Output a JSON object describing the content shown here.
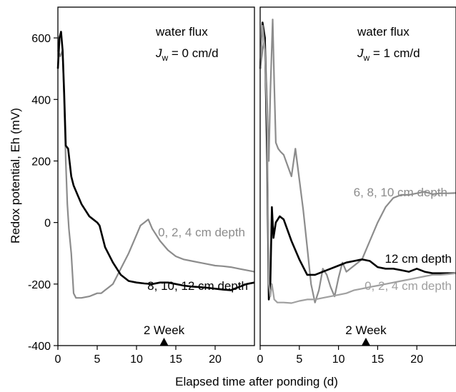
{
  "chart_data": [
    {
      "type": "line",
      "panel": "left",
      "annotation_line1": "water flux",
      "annotation_line2_italic": "J",
      "annotation_line2_sub": "w",
      "annotation_line2_rest": " = 0 cm/d",
      "xlabel": "Elapsed time after ponding (d)",
      "ylabel": "Redox potential, Eh (mV)",
      "xlim": [
        0,
        25
      ],
      "ylim": [
        -400,
        700
      ],
      "xticks": [
        "0",
        "5",
        "10",
        "15",
        "20"
      ],
      "yticks": [
        "600",
        "400",
        "200",
        "0",
        "-200",
        "-400"
      ],
      "marker_label": "2 Week",
      "marker_x": 13.5,
      "series": [
        {
          "name": "0, 2, 4 cm depth",
          "color": "#8c8c8c",
          "x": [
            0,
            0.3,
            0.6,
            0.9,
            1.0,
            1.2,
            1.4,
            1.7,
            2.0,
            2.3,
            3,
            4,
            5,
            5.5,
            6,
            6.5,
            7,
            8,
            9,
            10,
            10.5,
            11,
            11.5,
            12,
            13,
            14,
            15,
            16,
            17,
            18,
            19,
            20,
            21,
            22,
            23,
            24,
            25
          ],
          "y": [
            560,
            540,
            560,
            300,
            200,
            60,
            -20,
            -100,
            -230,
            -245,
            -245,
            -240,
            -230,
            -230,
            -220,
            -210,
            -200,
            -150,
            -100,
            -40,
            -10,
            0,
            10,
            -20,
            -60,
            -90,
            -110,
            -120,
            -125,
            -130,
            -135,
            -140,
            -142,
            -145,
            -150,
            -155,
            -160
          ]
        },
        {
          "name": "8, 10, 12 cm depth",
          "color": "#000000",
          "x": [
            0,
            0.2,
            0.4,
            0.6,
            0.8,
            1.0,
            1.3,
            1.7,
            2.0,
            2.5,
            3,
            3.5,
            4,
            4.5,
            5,
            5.3,
            5.6,
            6,
            7,
            8,
            9,
            10,
            11,
            12,
            13,
            14,
            15,
            16,
            17,
            18,
            19,
            20,
            21,
            22,
            23,
            24,
            25
          ],
          "y": [
            500,
            600,
            620,
            560,
            420,
            250,
            240,
            150,
            120,
            90,
            60,
            40,
            20,
            10,
            0,
            -10,
            -40,
            -80,
            -130,
            -170,
            -190,
            -195,
            -198,
            -200,
            -195,
            -195,
            -200,
            -205,
            -208,
            -210,
            -212,
            -215,
            -218,
            -220,
            -210,
            -200,
            -195
          ]
        }
      ]
    },
    {
      "type": "line",
      "panel": "right",
      "annotation_line1": "water flux",
      "annotation_line2_italic": "J",
      "annotation_line2_sub": "w",
      "annotation_line2_rest": " = 1 cm/d",
      "xlabel": "Elapsed time after ponding (d)",
      "xlim": [
        0,
        25
      ],
      "ylim": [
        -400,
        700
      ],
      "xticks": [
        "0",
        "5",
        "10",
        "15",
        "20"
      ],
      "marker_label": "2 Week",
      "marker_x": 13.5,
      "series": [
        {
          "name": "6, 8, 10 cm depth",
          "color": "#8c8c8c",
          "x": [
            0,
            0.3,
            0.6,
            0.9,
            1.1,
            1.3,
            1.6,
            1.8,
            2.0,
            2.3,
            2.6,
            3,
            4,
            4.5,
            5,
            5.5,
            6,
            6.5,
            7,
            7.5,
            8,
            8.5,
            9,
            9.5,
            10,
            10.5,
            11,
            12,
            13,
            14,
            15,
            16,
            17,
            18,
            19,
            20,
            21,
            22,
            23,
            24,
            25
          ],
          "y": [
            500,
            560,
            600,
            380,
            200,
            420,
            660,
            450,
            260,
            240,
            230,
            220,
            150,
            240,
            140,
            40,
            -80,
            -200,
            -260,
            -220,
            -150,
            -170,
            -210,
            -240,
            -180,
            -130,
            -160,
            -140,
            -120,
            -60,
            0,
            50,
            80,
            90,
            90,
            95,
            100,
            92,
            95,
            95,
            96
          ]
        },
        {
          "name": "12 cm depth",
          "color": "#000000",
          "x": [
            0,
            0.3,
            0.6,
            0.9,
            1.1,
            1.3,
            1.5,
            1.7,
            2.0,
            2.5,
            3,
            4,
            5,
            6,
            7,
            8,
            9,
            10,
            11,
            12,
            13,
            14,
            15,
            16,
            17,
            18,
            19,
            20,
            21,
            22,
            23,
            24,
            25
          ],
          "y": [
            500,
            650,
            600,
            200,
            -250,
            -200,
            50,
            -50,
            0,
            20,
            10,
            -60,
            -120,
            -170,
            -170,
            -160,
            -150,
            -140,
            -130,
            -125,
            -120,
            -125,
            -145,
            -150,
            -150,
            -155,
            -160,
            -150,
            -160,
            -165,
            -165,
            -165,
            -165
          ]
        },
        {
          "name": "0, 2, 4 cm depth",
          "color": "#a0a0a0",
          "x": [
            0,
            0.3,
            0.6,
            0.9,
            1.1,
            1.3,
            1.5,
            1.8,
            2.2,
            3,
            4,
            5,
            6,
            7,
            8,
            9,
            10,
            11,
            12,
            13,
            14,
            15,
            16,
            17,
            18,
            19,
            20,
            21,
            22,
            23,
            24,
            25
          ],
          "y": [
            500,
            640,
            560,
            300,
            -200,
            -240,
            -200,
            -250,
            -260,
            -260,
            -262,
            -255,
            -250,
            -250,
            -245,
            -240,
            -235,
            -230,
            -220,
            -215,
            -210,
            -205,
            -200,
            -195,
            -190,
            -185,
            -180,
            -175,
            -170,
            -170,
            -168,
            -165
          ]
        }
      ]
    }
  ]
}
